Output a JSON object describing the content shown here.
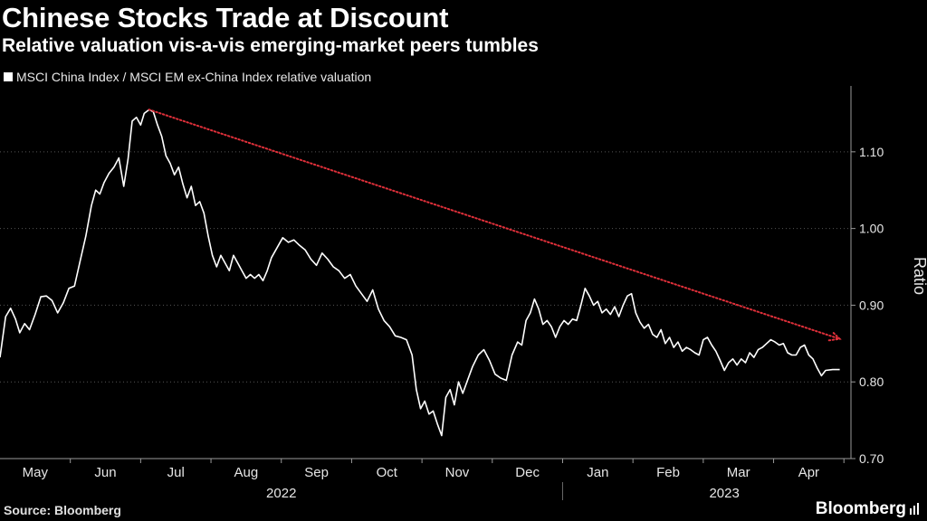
{
  "header": {
    "title": "Chinese Stocks Trade at Discount",
    "subtitle": "Relative valuation vis-a-vis emerging-market peers tumbles",
    "legend_label": "MSCI China Index / MSCI EM ex-China Index relative valuation"
  },
  "footer": {
    "source": "Source: Bloomberg",
    "brand": "Bloomberg"
  },
  "colors": {
    "background": "#000000",
    "series": "#ffffff",
    "trend": "#e0303a",
    "axis": "#9a9a9a"
  },
  "chart_data": {
    "type": "line",
    "title": "Chinese Stocks Trade at Discount",
    "subtitle": "Relative valuation vis-a-vis emerging-market peers tumbles",
    "xlabel": "",
    "ylabel": "Ratio",
    "ylim": [
      0.7,
      1.18
    ],
    "yticks": [
      0.7,
      0.8,
      0.9,
      1.0,
      1.1
    ],
    "ytick_labels": [
      "0.70",
      "0.80",
      "0.90",
      "1.00",
      "1.10"
    ],
    "x_unit": "months since 2022-05-01",
    "xlim": [
      0,
      12.1
    ],
    "month_labels": [
      {
        "label": "May",
        "x": 0.5
      },
      {
        "label": "Jun",
        "x": 1.5
      },
      {
        "label": "Jul",
        "x": 2.5
      },
      {
        "label": "Aug",
        "x": 3.5
      },
      {
        "label": "Sep",
        "x": 4.5
      },
      {
        "label": "Oct",
        "x": 5.5
      },
      {
        "label": "Nov",
        "x": 6.5
      },
      {
        "label": "Dec",
        "x": 7.5
      },
      {
        "label": "Jan",
        "x": 8.5
      },
      {
        "label": "Feb",
        "x": 9.5
      },
      {
        "label": "Mar",
        "x": 10.5
      },
      {
        "label": "Apr",
        "x": 11.5
      }
    ],
    "month_boundaries": [
      1,
      2,
      3,
      4,
      5,
      6,
      7,
      8,
      9,
      10,
      11,
      12
    ],
    "year_labels": [
      {
        "label": "2022",
        "x": 4.0
      },
      {
        "label": "2023",
        "x": 10.3
      }
    ],
    "year_boundary": 8,
    "legend": [
      "MSCI China Index / MSCI EM ex-China Index relative valuation"
    ],
    "series": [
      {
        "name": "MSCI China Index / MSCI EM ex-China Index relative valuation",
        "points": [
          [
            0.0,
            0.832
          ],
          [
            0.08,
            0.885
          ],
          [
            0.15,
            0.896
          ],
          [
            0.22,
            0.882
          ],
          [
            0.28,
            0.864
          ],
          [
            0.35,
            0.876
          ],
          [
            0.42,
            0.868
          ],
          [
            0.5,
            0.888
          ],
          [
            0.58,
            0.911
          ],
          [
            0.66,
            0.912
          ],
          [
            0.74,
            0.906
          ],
          [
            0.82,
            0.89
          ],
          [
            0.9,
            0.903
          ],
          [
            0.98,
            0.922
          ],
          [
            1.06,
            0.925
          ],
          [
            1.14,
            0.958
          ],
          [
            1.22,
            0.99
          ],
          [
            1.3,
            1.03
          ],
          [
            1.36,
            1.05
          ],
          [
            1.42,
            1.045
          ],
          [
            1.48,
            1.06
          ],
          [
            1.55,
            1.072
          ],
          [
            1.62,
            1.08
          ],
          [
            1.69,
            1.092
          ],
          [
            1.76,
            1.055
          ],
          [
            1.82,
            1.09
          ],
          [
            1.88,
            1.14
          ],
          [
            1.94,
            1.145
          ],
          [
            2.0,
            1.135
          ],
          [
            2.05,
            1.15
          ],
          [
            2.12,
            1.155
          ],
          [
            2.18,
            1.152
          ],
          [
            2.24,
            1.135
          ],
          [
            2.3,
            1.12
          ],
          [
            2.36,
            1.095
          ],
          [
            2.42,
            1.085
          ],
          [
            2.48,
            1.07
          ],
          [
            2.54,
            1.08
          ],
          [
            2.6,
            1.058
          ],
          [
            2.66,
            1.04
          ],
          [
            2.72,
            1.055
          ],
          [
            2.78,
            1.03
          ],
          [
            2.84,
            1.035
          ],
          [
            2.9,
            1.02
          ],
          [
            2.96,
            0.99
          ],
          [
            3.02,
            0.965
          ],
          [
            3.08,
            0.95
          ],
          [
            3.14,
            0.965
          ],
          [
            3.2,
            0.955
          ],
          [
            3.26,
            0.945
          ],
          [
            3.32,
            0.965
          ],
          [
            3.38,
            0.955
          ],
          [
            3.44,
            0.945
          ],
          [
            3.5,
            0.935
          ],
          [
            3.56,
            0.94
          ],
          [
            3.62,
            0.935
          ],
          [
            3.68,
            0.94
          ],
          [
            3.74,
            0.932
          ],
          [
            3.8,
            0.945
          ],
          [
            3.86,
            0.962
          ],
          [
            3.94,
            0.975
          ],
          [
            4.02,
            0.988
          ],
          [
            4.1,
            0.982
          ],
          [
            4.18,
            0.985
          ],
          [
            4.26,
            0.978
          ],
          [
            4.34,
            0.972
          ],
          [
            4.42,
            0.96
          ],
          [
            4.5,
            0.952
          ],
          [
            4.58,
            0.968
          ],
          [
            4.66,
            0.96
          ],
          [
            4.74,
            0.95
          ],
          [
            4.82,
            0.945
          ],
          [
            4.9,
            0.935
          ],
          [
            4.98,
            0.94
          ],
          [
            5.06,
            0.925
          ],
          [
            5.14,
            0.915
          ],
          [
            5.22,
            0.905
          ],
          [
            5.3,
            0.92
          ],
          [
            5.38,
            0.895
          ],
          [
            5.46,
            0.88
          ],
          [
            5.54,
            0.872
          ],
          [
            5.62,
            0.86
          ],
          [
            5.7,
            0.858
          ],
          [
            5.78,
            0.855
          ],
          [
            5.86,
            0.835
          ],
          [
            5.92,
            0.79
          ],
          [
            5.98,
            0.765
          ],
          [
            6.04,
            0.775
          ],
          [
            6.1,
            0.758
          ],
          [
            6.16,
            0.762
          ],
          [
            6.22,
            0.745
          ],
          [
            6.28,
            0.73
          ],
          [
            6.34,
            0.78
          ],
          [
            6.4,
            0.79
          ],
          [
            6.46,
            0.77
          ],
          [
            6.52,
            0.8
          ],
          [
            6.58,
            0.785
          ],
          [
            6.64,
            0.8
          ],
          [
            6.72,
            0.82
          ],
          [
            6.8,
            0.835
          ],
          [
            6.88,
            0.842
          ],
          [
            6.96,
            0.828
          ],
          [
            7.04,
            0.81
          ],
          [
            7.12,
            0.805
          ],
          [
            7.2,
            0.802
          ],
          [
            7.28,
            0.835
          ],
          [
            7.36,
            0.852
          ],
          [
            7.42,
            0.848
          ],
          [
            7.48,
            0.88
          ],
          [
            7.54,
            0.89
          ],
          [
            7.6,
            0.908
          ],
          [
            7.66,
            0.895
          ],
          [
            7.72,
            0.875
          ],
          [
            7.78,
            0.88
          ],
          [
            7.84,
            0.872
          ],
          [
            7.9,
            0.858
          ],
          [
            7.96,
            0.872
          ],
          [
            8.02,
            0.88
          ],
          [
            8.08,
            0.875
          ],
          [
            8.14,
            0.882
          ],
          [
            8.2,
            0.88
          ],
          [
            8.26,
            0.9
          ],
          [
            8.32,
            0.922
          ],
          [
            8.38,
            0.912
          ],
          [
            8.44,
            0.9
          ],
          [
            8.5,
            0.905
          ],
          [
            8.56,
            0.89
          ],
          [
            8.62,
            0.895
          ],
          [
            8.68,
            0.888
          ],
          [
            8.74,
            0.898
          ],
          [
            8.8,
            0.885
          ],
          [
            8.86,
            0.9
          ],
          [
            8.92,
            0.912
          ],
          [
            8.98,
            0.915
          ],
          [
            9.04,
            0.89
          ],
          [
            9.1,
            0.878
          ],
          [
            9.16,
            0.87
          ],
          [
            9.22,
            0.875
          ],
          [
            9.28,
            0.862
          ],
          [
            9.34,
            0.858
          ],
          [
            9.4,
            0.868
          ],
          [
            9.46,
            0.85
          ],
          [
            9.52,
            0.858
          ],
          [
            9.58,
            0.845
          ],
          [
            9.64,
            0.852
          ],
          [
            9.7,
            0.84
          ],
          [
            9.76,
            0.845
          ],
          [
            9.82,
            0.842
          ],
          [
            9.88,
            0.838
          ],
          [
            9.94,
            0.835
          ],
          [
            10.0,
            0.855
          ],
          [
            10.06,
            0.858
          ],
          [
            10.12,
            0.848
          ],
          [
            10.18,
            0.84
          ],
          [
            10.24,
            0.828
          ],
          [
            10.3,
            0.815
          ],
          [
            10.36,
            0.825
          ],
          [
            10.42,
            0.83
          ],
          [
            10.48,
            0.822
          ],
          [
            10.54,
            0.83
          ],
          [
            10.6,
            0.825
          ],
          [
            10.66,
            0.838
          ],
          [
            10.72,
            0.832
          ],
          [
            10.78,
            0.842
          ],
          [
            10.84,
            0.845
          ],
          [
            10.9,
            0.85
          ],
          [
            10.96,
            0.855
          ],
          [
            11.02,
            0.852
          ],
          [
            11.08,
            0.848
          ],
          [
            11.14,
            0.85
          ],
          [
            11.2,
            0.838
          ],
          [
            11.26,
            0.835
          ],
          [
            11.32,
            0.835
          ],
          [
            11.38,
            0.845
          ],
          [
            11.44,
            0.848
          ],
          [
            11.5,
            0.835
          ],
          [
            11.56,
            0.83
          ],
          [
            11.62,
            0.818
          ],
          [
            11.68,
            0.808
          ],
          [
            11.74,
            0.815
          ],
          [
            11.84,
            0.816
          ],
          [
            11.94,
            0.816
          ]
        ]
      }
    ],
    "trend_line": {
      "style": "dotted arrow",
      "from": [
        2.12,
        1.155
      ],
      "to": [
        11.94,
        0.856
      ]
    }
  }
}
